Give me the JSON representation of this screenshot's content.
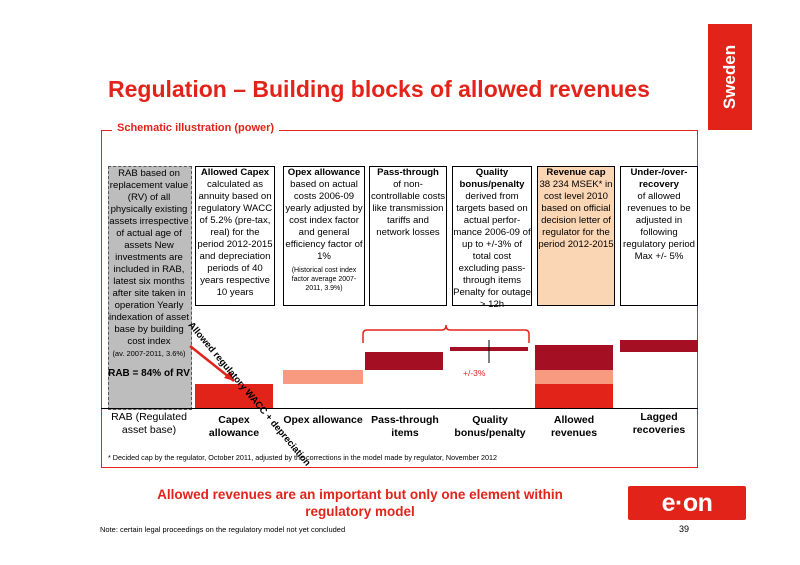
{
  "header": {
    "country": "Sweden",
    "title": "Regulation – Building blocks of allowed revenues"
  },
  "frame_label": "Schematic illustration (power)",
  "rab_text": "RAB based on replacement value (RV) of all physically existing assets irrespective of actual age of assets New investments are included in RAB, latest six months after site taken in operation Yearly indexation of asset base by building cost index",
  "rab_small": "(av. 2007-2011, 3.6%)",
  "rab_pct": "RAB = 84% of RV",
  "boxes": [
    {
      "title": "Allowed Capex",
      "body": "calculated as annuity based on regulatory WACC of 5.2% (pre-tax, real) for the period 2012-2015 and depreciation periods of 40 years respective 10 years"
    },
    {
      "title": "Opex allowance",
      "body": "based on actual costs 2006-09 yearly adjusted by cost index factor and general efficiency factor of 1%",
      "small": "(Historical cost index factor average 2007-2011, 3.9%)"
    },
    {
      "title": "Pass-through",
      "body": "of non-controllable costs like transmission tariffs and network losses"
    },
    {
      "title": "Quality bonus/penalty",
      "body": "derived from targets based on actual perfor-mance 2006-09 of up to +/-3% of total cost excluding pass-through items Penalty for outage > 12h"
    },
    {
      "title": "Revenue cap",
      "body": "38 234 MSEK* in cost level 2010 based on official decision letter of regulator for the period 2012-2015"
    },
    {
      "title": "Under-/over-recovery",
      "body": "of allowed revenues to be adjusted in following regulatory period Max +/- 5%"
    }
  ],
  "diag_label": "Allowed regulatory WACC + depreciation",
  "pm_label": "+/-3%",
  "axis_labels": [
    "RAB (Regulated asset base)",
    "Capex allowance",
    "Opex allowance",
    "Pass-through items",
    "Quality bonus/penalty",
    "Allowed revenues",
    "Lagged recoveries"
  ],
  "footnote": "* Decided cap by the regulator, October 2011, adjusted by the corrections in the model made by regulator, November 2012",
  "conclusion": "Allowed revenues are an important but only one element within regulatory model",
  "note": "Note: certain legal proceedings on the regulatory model not yet concluded",
  "page_number": "39",
  "logo": "e·on",
  "colors": {
    "accent": "#e2231a",
    "dark_red": "#a50f24",
    "salmon": "#f79a7f",
    "cap_fill": "#fbd6b5"
  }
}
